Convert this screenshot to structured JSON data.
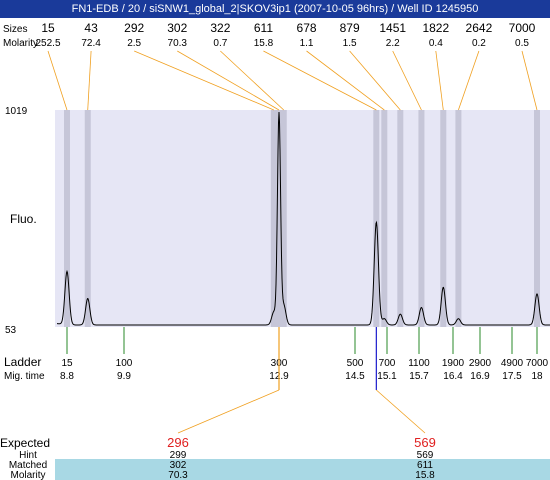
{
  "window": {
    "title": "FN1-EDB / 20 / siSNW1_global_2|SKOV3ip1 (2007-10-05 96hrs) / Well ID 1245950"
  },
  "chart_data": {
    "type": "line",
    "y_axis": {
      "label": "Fluo.",
      "max_label": "1019",
      "min_label": "53",
      "ylim": [
        53,
        1019
      ]
    },
    "top_rows": {
      "sizes_label": "Sizes",
      "molarity_label": "Molarity"
    },
    "peaks": [
      {
        "size": "15",
        "molarity": "252.5",
        "time": 8.8,
        "height": 300
      },
      {
        "size": "43",
        "molarity": "72.4",
        "time": 9.2,
        "height": 180
      },
      {
        "size": "292",
        "molarity": "2.5",
        "time": 12.8,
        "height": 120
      },
      {
        "size": "302",
        "molarity": "70.3",
        "time": 12.9,
        "height": 1000
      },
      {
        "size": "322",
        "molarity": "0.7",
        "time": 13.0,
        "height": 150
      },
      {
        "size": "611",
        "molarity": "15.8",
        "time": 14.9,
        "height": 520
      },
      {
        "size": "678",
        "molarity": "1.1",
        "time": 15.05,
        "height": 90
      },
      {
        "size": "879",
        "molarity": "1.5",
        "time": 15.35,
        "height": 110
      },
      {
        "size": "1451",
        "molarity": "2.2",
        "time": 15.75,
        "height": 140
      },
      {
        "size": "1822",
        "molarity": "0.4",
        "time": 16.2,
        "height": 230
      },
      {
        "size": "2642",
        "molarity": "0.2",
        "time": 16.5,
        "height": 90
      },
      {
        "size": "7000",
        "molarity": "0.5",
        "time": 18.0,
        "height": 200
      }
    ],
    "ladder": {
      "label": "Ladder",
      "time_label": "Mig. time",
      "markers": [
        {
          "size": "15",
          "time": "8.8",
          "t": 8.8
        },
        {
          "size": "100",
          "time": "9.9",
          "t": 9.9
        },
        {
          "size": "300",
          "time": "12.9",
          "t": 12.9
        },
        {
          "size": "500",
          "time": "14.5",
          "t": 14.5
        },
        {
          "size": "700",
          "time": "15.1",
          "t": 15.1
        },
        {
          "size": "1100",
          "time": "15.7",
          "t": 15.7
        },
        {
          "size": "1900",
          "time": "16.4",
          "t": 16.4
        },
        {
          "size": "2900",
          "time": "16.9",
          "t": 16.9
        },
        {
          "size": "4900",
          "time": "17.5",
          "t": 17.5
        },
        {
          "size": "7000",
          "time": "18",
          "t": 18.0
        }
      ]
    },
    "expected": {
      "label": "Expected",
      "hint_label": "Hint",
      "matched_label": "Matched",
      "molarity_label": "Molarity",
      "items": [
        {
          "expected": "296",
          "hint": "299",
          "matched": "302",
          "molarity": "70.3",
          "time": 12.9
        },
        {
          "expected": "569",
          "hint": "569",
          "matched": "611",
          "molarity": "15.8",
          "time": 14.9
        }
      ]
    },
    "colors": {
      "plot_bg": "#e6e6f5",
      "band": "#c6c6d8",
      "leader": "#f0a020",
      "ladder_tick": "#2a8a2a",
      "expected_value": "#e02020",
      "table_row": "#a8d8e4",
      "marker": "#1a1acc"
    }
  }
}
